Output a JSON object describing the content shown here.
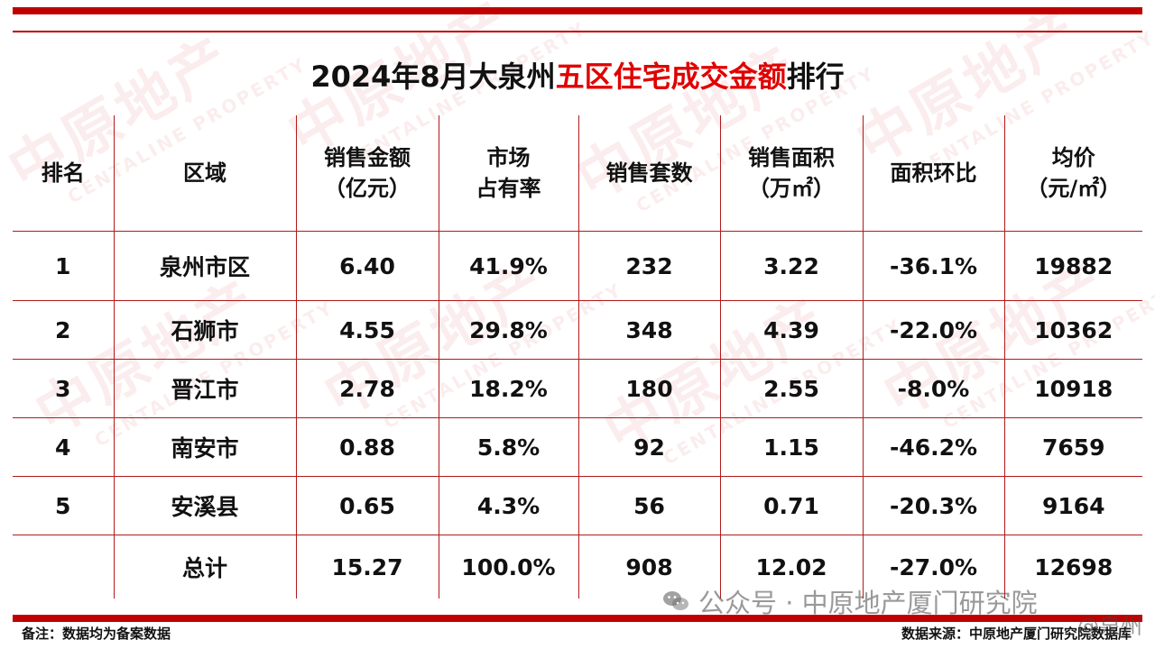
{
  "title": {
    "prefix": "2024年8月大泉州",
    "highlight": "五区住宅成交金额",
    "suffix": "排行"
  },
  "table": {
    "headers": [
      [
        "排名"
      ],
      [
        "区域"
      ],
      [
        "销售金额",
        "（亿元）"
      ],
      [
        "市场",
        "占有率"
      ],
      [
        "销售套数"
      ],
      [
        "销售面积",
        "（万㎡）"
      ],
      [
        "面积环比"
      ],
      [
        "均价",
        "（元/㎡）"
      ]
    ],
    "rows": [
      [
        "1",
        "泉州市区",
        "6.40",
        "41.9%",
        "232",
        "3.22",
        "-36.1%",
        "19882"
      ],
      [
        "2",
        "石狮市",
        "4.55",
        "29.8%",
        "348",
        "4.39",
        "-22.0%",
        "10362"
      ],
      [
        "3",
        "晋江市",
        "2.78",
        "18.2%",
        "180",
        "2.55",
        "-8.0%",
        "10918"
      ],
      [
        "4",
        "南安市",
        "0.88",
        "5.8%",
        "92",
        "1.15",
        "-46.2%",
        "7659"
      ],
      [
        "5",
        "安溪县",
        "0.65",
        "4.3%",
        "56",
        "0.71",
        "-20.3%",
        "9164"
      ],
      [
        "",
        "总计",
        "15.27",
        "100.0%",
        "908",
        "12.02",
        "-27.0%",
        "12698"
      ]
    ]
  },
  "footer": {
    "note": "备注：数据均为备案数据",
    "source": "数据来源：中原地产厦门研究院数据库"
  },
  "overlay": {
    "wechat": "公众号 · 中原地产厦门研究院",
    "weibo": "@泉州"
  },
  "watermark": {
    "cn": "中原地产",
    "en": "CENTALINE PROPERTY"
  },
  "colors": {
    "accent": "#c00000",
    "highlight": "#e00000"
  },
  "icons": {
    "wechat": "wechat-icon"
  }
}
